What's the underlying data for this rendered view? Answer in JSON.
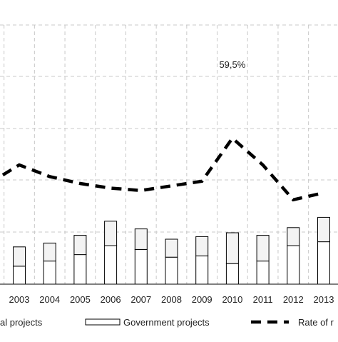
{
  "chart_data": {
    "type": "bar",
    "categories": [
      "2003",
      "2004",
      "2005",
      "2006",
      "2007",
      "2008",
      "2009",
      "2010",
      "2011",
      "2012",
      "2013"
    ],
    "series": [
      {
        "name": "al projects",
        "kind": "bar-bottom",
        "values": [
          7,
          9,
          11.5,
          15,
          13.5,
          10.5,
          11,
          8,
          9,
          15,
          16.5
        ]
      },
      {
        "name": "Government projects",
        "kind": "bar-top",
        "values": [
          7.5,
          7,
          7.5,
          9.5,
          8,
          7,
          7.5,
          12,
          10,
          7,
          9.5
        ]
      },
      {
        "name": "Rate of r",
        "kind": "line",
        "values": [
          48,
          43,
          40,
          38,
          37,
          39,
          41,
          59.5,
          48,
          33,
          36
        ]
      }
    ],
    "annotations": [
      {
        "x": "2010",
        "text": "59,5%"
      }
    ],
    "grid": true,
    "legend_position": "bottom"
  }
}
